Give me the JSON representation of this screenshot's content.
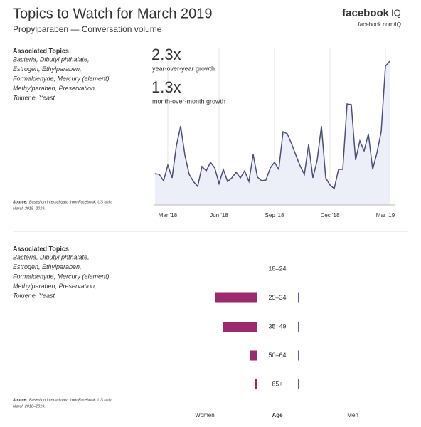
{
  "header": {
    "title": "Topics to Watch for March 2019",
    "subtitle": "Propylparaben — Conversation volume",
    "brand": "facebook",
    "brand_suffix": "IQ",
    "url": "facebook.com/IQ"
  },
  "panels": [
    {
      "heading": "Associated Topics",
      "topics": [
        "Bacteria, Dibutyl phthalate,",
        "Estrogen, Ethylparaben,",
        "Formaldehyde, Mercury (element),",
        "Methylparaben, Preservation,",
        "Toluene, Yeast"
      ],
      "source_label": "Source:",
      "source_text": [
        "Based on internal data from Facebook, US only.",
        "March 2018–2019."
      ]
    },
    {
      "heading": "Associated Topics",
      "topics": [
        "Bacteria, Dibutyl phthalate,",
        "Estrogen, Ethylparaben,",
        "Formaldehyde, Mercury (element),",
        "Methylparaben, Preservation,",
        "Toluene, Yeast"
      ],
      "source_label": "Source:",
      "source_text": [
        "Based on internal data from Facebook, US only.",
        "March 2018–2019."
      ]
    }
  ],
  "chart_data": [
    {
      "type": "line",
      "color": "#4a4e7e",
      "fill": "#eceef8",
      "annotations": [
        {
          "value": "2.3x",
          "text": "year-over-year growth"
        },
        {
          "value": "1.3x",
          "text": "month-over-month growth"
        }
      ],
      "categories": [
        null,
        null,
        null,
        "Mar '18",
        null,
        null,
        null,
        null,
        null,
        null,
        null,
        null,
        null,
        null,
        null,
        "Jun '18",
        null,
        null,
        null,
        null,
        null,
        null,
        null,
        null,
        null,
        null,
        null,
        null,
        "Sep '18",
        null,
        null,
        null,
        null,
        null,
        null,
        null,
        null,
        null,
        null,
        null,
        null,
        "Dec '18",
        null,
        null,
        null,
        null,
        null,
        null,
        null,
        null,
        null,
        null,
        null,
        null,
        "Mar '19",
        null
      ],
      "values": [
        22,
        21.5,
        17,
        28,
        19,
        41.5,
        55.5,
        35,
        21.5,
        16.5,
        13,
        27,
        24,
        30,
        26,
        15,
        25,
        16.5,
        19,
        23,
        19,
        24,
        16.5,
        35.5,
        19.5,
        17,
        17.5,
        26,
        30,
        25,
        51.5,
        50,
        43,
        35,
        27.5,
        21.5,
        42.5,
        19,
        31.5,
        55.5,
        19,
        14,
        11.5,
        25,
        25,
        71,
        70.5,
        31.5,
        45,
        38,
        50,
        25,
        36.5,
        51.5,
        97.5,
        101
      ],
      "ylim": [
        0,
        110
      ]
    },
    {
      "type": "bar",
      "orientation": "horizontal",
      "category_label": "Age",
      "categories": [
        "18–24",
        "25–34",
        "35–49",
        "50–64",
        "65+"
      ],
      "series": [
        {
          "name": "Women",
          "color": "#9b2a6f",
          "values": [
            0,
            60,
            49,
            10,
            3
          ]
        },
        {
          "name": "Men",
          "color": "#5b5ea6",
          "values": [
            0,
            1,
            1.5,
            1,
            1
          ]
        }
      ],
      "xlim": [
        0,
        70
      ]
    }
  ]
}
